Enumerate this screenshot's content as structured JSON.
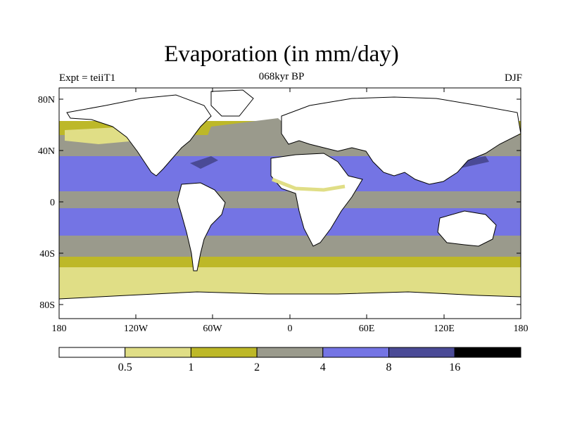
{
  "title": "Evaporation (in mm/day)",
  "subtitle": "068kyr BP",
  "left_label": "Expt = teiiT1",
  "right_label": "DJF",
  "lat_labels": [
    "80N",
    "40N",
    "0",
    "40S",
    "80S"
  ],
  "lon_labels": [
    "180",
    "120W",
    "60W",
    "0",
    "60E",
    "120E",
    "180"
  ],
  "legend": {
    "colors": [
      "#ffffff",
      "#e0de86",
      "#bdb828",
      "#9a9a8c",
      "#7474e4",
      "#4a4a96",
      "#000000"
    ],
    "labels": [
      "0.5",
      "1",
      "2",
      "4",
      "8",
      "16"
    ]
  },
  "colors": {
    "land": "#ffffff",
    "very_low": "#ffffff",
    "low": "#e0de86",
    "mid_low": "#bdb828",
    "mid": "#9a9a8c",
    "high": "#7474e4",
    "very_high": "#4a4a96",
    "coast": "#000000"
  }
}
